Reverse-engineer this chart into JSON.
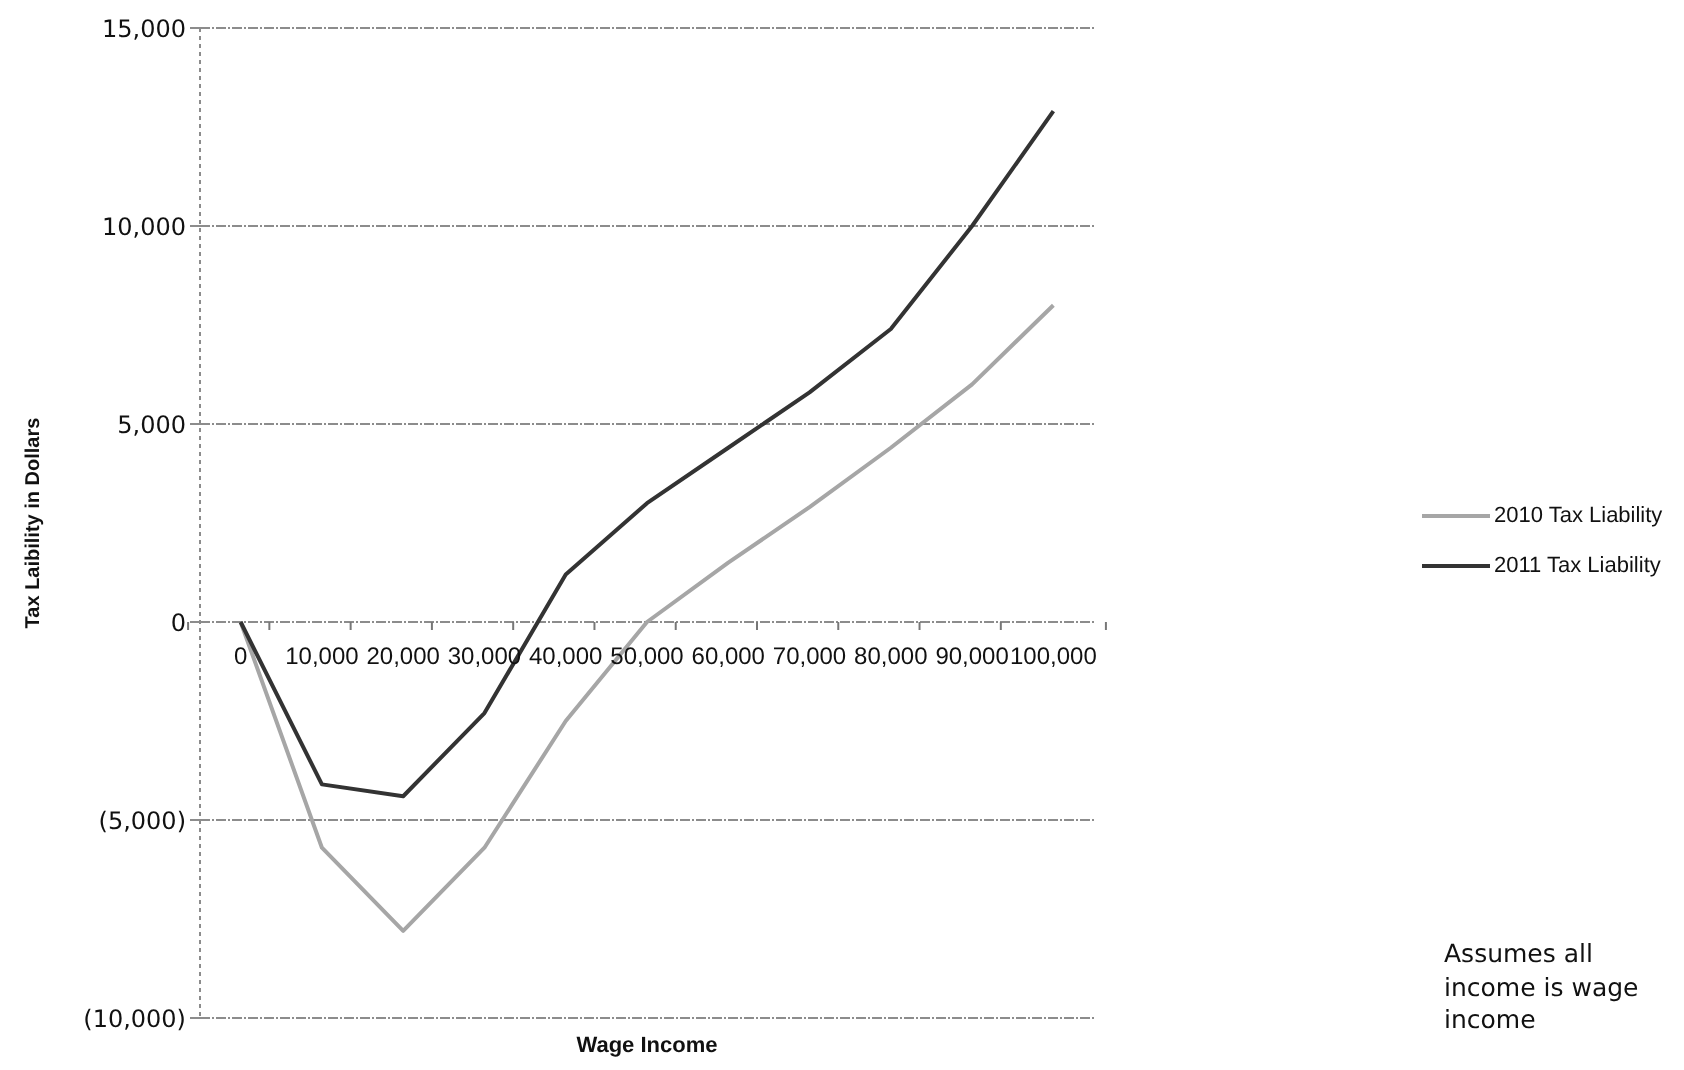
{
  "chart_data": {
    "type": "line",
    "xlabel": "Wage Income",
    "ylabel": "Tax Laibility in Dollars",
    "categories": [
      "0",
      "10,000",
      "20,000",
      "30,000",
      "40,000",
      "50,000",
      "60,000",
      "70,000",
      "80,000",
      "90,000",
      "100,000"
    ],
    "series": [
      {
        "name": "2010 Tax Liability",
        "color": "#a6a6a6",
        "values": [
          0,
          -5700,
          -7800,
          -5700,
          -2500,
          0,
          1500,
          2900,
          4400,
          6000,
          8000
        ]
      },
      {
        "name": "2011 Tax Liability",
        "color": "#333333",
        "values": [
          0,
          -4100,
          -4400,
          -2300,
          1200,
          3000,
          4400,
          5800,
          7400,
          10000,
          12900
        ]
      }
    ],
    "ylim": [
      -10000,
      15000
    ],
    "yticks": [
      {
        "value": -10000,
        "label": "(10,000)"
      },
      {
        "value": -5000,
        "label": "(5,000)"
      },
      {
        "value": 0,
        "label": "0"
      },
      {
        "value": 5000,
        "label": "5,000"
      },
      {
        "value": 10000,
        "label": "10,000"
      },
      {
        "value": 15000,
        "label": "15,000"
      }
    ],
    "grid": "y",
    "legend": "right",
    "marker": "none",
    "line_style": "solid",
    "annotations": [
      "Assumes all income is wage income"
    ]
  }
}
